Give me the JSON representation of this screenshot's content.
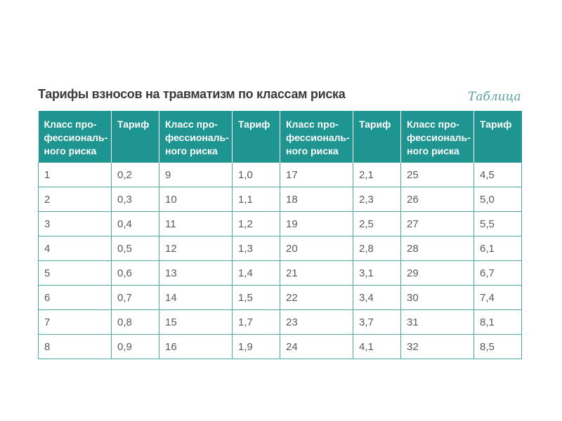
{
  "title": "Тарифы взносов на травматизм по классам риска",
  "table_label": "Таблица",
  "columns": [
    "Класс про-\nфессиональ-\nного риска",
    "Тариф",
    "Класс про-\nфессиональ-\nного риска",
    "Тариф",
    "Класс про-\nфессиональ-\nного риска",
    "Тариф",
    "Класс про-\nфессиональ-\nного риска",
    "Тариф"
  ],
  "rows": [
    [
      "1",
      "0,2",
      "9",
      "1,0",
      "17",
      "2,1",
      "25",
      "4,5"
    ],
    [
      "2",
      "0,3",
      "10",
      "1,1",
      "18",
      "2,3",
      "26",
      "5,0"
    ],
    [
      "3",
      "0,4",
      "11",
      "1,2",
      "19",
      "2,5",
      "27",
      "5,5"
    ],
    [
      "4",
      "0,5",
      "12",
      "1,3",
      "20",
      "2,8",
      "28",
      "6,1"
    ],
    [
      "5",
      "0,6",
      "13",
      "1,4",
      "21",
      "3,1",
      "29",
      "6,7"
    ],
    [
      "6",
      "0,7",
      "14",
      "1,5",
      "22",
      "3,4",
      "30",
      "7,4"
    ],
    [
      "7",
      "0,8",
      "15",
      "1,7",
      "23",
      "3,7",
      "31",
      "8,1"
    ],
    [
      "8",
      "0,9",
      "16",
      "1,9",
      "24",
      "4,1",
      "32",
      "8,5"
    ]
  ],
  "colors": {
    "header_bg": "#1e9591",
    "border": "#4fa7a3",
    "label": "#5aa19d"
  }
}
